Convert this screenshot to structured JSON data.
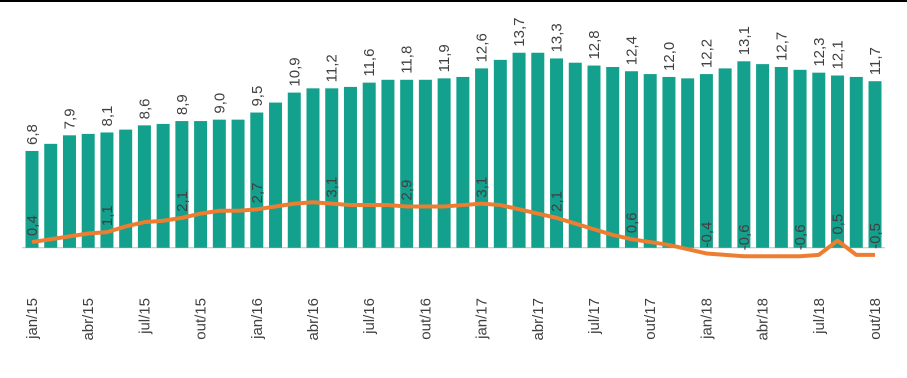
{
  "chart_data": {
    "type": "bar-line",
    "categories": [
      "jan/15",
      null,
      null,
      "abr/15",
      null,
      null,
      "jul/15",
      null,
      null,
      "out/15",
      null,
      null,
      "jan/16",
      null,
      null,
      "abr/16",
      null,
      null,
      "jul/16",
      null,
      null,
      "out/16",
      null,
      null,
      "jan/17",
      null,
      null,
      "abr/17",
      null,
      null,
      "jul/17",
      null,
      null,
      "out/17",
      null,
      null,
      "jan/18",
      null,
      null,
      "abr/18",
      null,
      null,
      "jul/18",
      null,
      null,
      "out/18"
    ],
    "series": [
      {
        "type": "bar",
        "color": "#13a08c",
        "values": [
          6.8,
          7.3,
          7.9,
          8.0,
          8.1,
          8.3,
          8.6,
          8.7,
          8.9,
          8.9,
          9.0,
          9.0,
          9.5,
          10.2,
          10.9,
          11.2,
          11.2,
          11.3,
          11.6,
          11.8,
          11.8,
          11.8,
          11.9,
          12.0,
          12.6,
          13.2,
          13.7,
          13.7,
          13.3,
          13.0,
          12.8,
          12.7,
          12.4,
          12.2,
          12.0,
          11.9,
          12.2,
          12.6,
          13.1,
          12.9,
          12.7,
          12.5,
          12.3,
          12.1,
          12.0,
          11.7
        ],
        "value_labels": [
          "6,8",
          null,
          "7,9",
          null,
          "8,1",
          null,
          "8,6",
          null,
          "8,9",
          null,
          "9,0",
          null,
          "9,5",
          null,
          "10,9",
          null,
          "11,2",
          null,
          "11,6",
          null,
          "11,8",
          null,
          "11,9",
          null,
          "12,6",
          null,
          "13,7",
          null,
          "13,3",
          null,
          "12,8",
          null,
          "12,4",
          null,
          "12,0",
          null,
          "12,2",
          null,
          "13,1",
          null,
          "12,7",
          null,
          "12,3",
          "12,1",
          null,
          "11,7"
        ]
      },
      {
        "type": "line",
        "color": "#ed7d31",
        "values": [
          0.4,
          0.6,
          0.8,
          1.0,
          1.1,
          1.5,
          1.8,
          1.9,
          2.1,
          2.4,
          2.6,
          2.6,
          2.7,
          2.9,
          3.1,
          3.2,
          3.1,
          3.0,
          3.0,
          3.0,
          2.9,
          2.9,
          2.9,
          3.0,
          3.1,
          3.0,
          2.7,
          2.4,
          2.1,
          1.7,
          1.3,
          0.9,
          0.6,
          0.4,
          0.2,
          -0.1,
          -0.4,
          -0.5,
          -0.6,
          -0.6,
          -0.6,
          -0.6,
          -0.5,
          0.5,
          -0.5,
          -0.5
        ],
        "value_labels": [
          "0,4",
          null,
          null,
          null,
          "1,1",
          null,
          null,
          null,
          "2,1",
          null,
          null,
          null,
          "2,7",
          null,
          null,
          null,
          "3,1",
          null,
          null,
          null,
          "2,9",
          null,
          null,
          null,
          "3,1",
          null,
          null,
          null,
          "2,1",
          null,
          null,
          null,
          "0,6",
          null,
          null,
          null,
          "-0,4",
          null,
          "-0,6",
          null,
          null,
          "-0,6",
          null,
          "0,5",
          null,
          "-0,5"
        ]
      }
    ],
    "ylim": [
      -1,
      16
    ]
  }
}
